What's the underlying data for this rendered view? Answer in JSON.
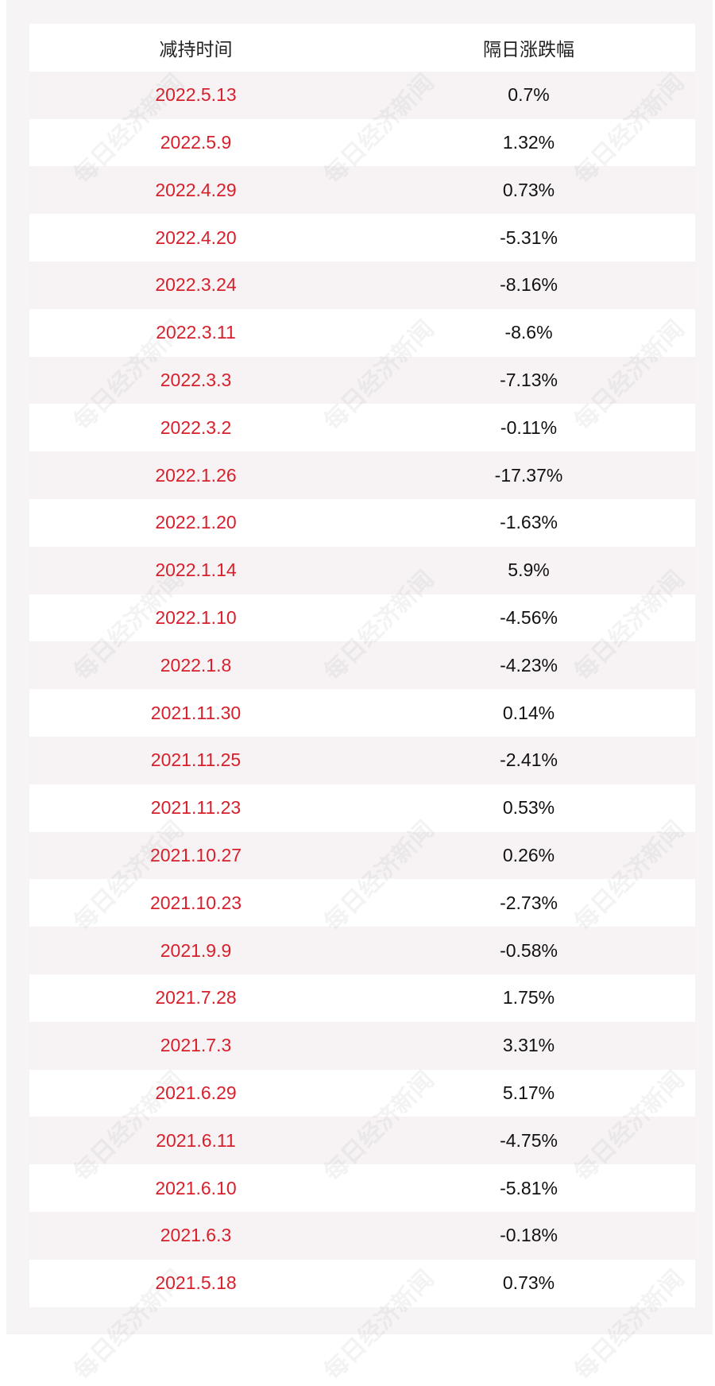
{
  "table": {
    "columns": [
      "减持时间",
      "隔日涨跌幅"
    ],
    "rows": [
      [
        "2022.5.13",
        "0.7%"
      ],
      [
        "2022.5.9",
        "1.32%"
      ],
      [
        "2022.4.29",
        "0.73%"
      ],
      [
        "2022.4.20",
        "-5.31%"
      ],
      [
        "2022.3.24",
        "-8.16%"
      ],
      [
        "2022.3.11",
        "-8.6%"
      ],
      [
        "2022.3.3",
        "-7.13%"
      ],
      [
        "2022.3.2",
        "-0.11%"
      ],
      [
        "2022.1.26",
        "-17.37%"
      ],
      [
        "2022.1.20",
        "-1.63%"
      ],
      [
        "2022.1.14",
        "5.9%"
      ],
      [
        "2022.1.10",
        "-4.56%"
      ],
      [
        "2022.1.8",
        "-4.23%"
      ],
      [
        "2021.11.30",
        "0.14%"
      ],
      [
        "2021.11.25",
        "-2.41%"
      ],
      [
        "2021.11.23",
        "0.53%"
      ],
      [
        "2021.10.27",
        "0.26%"
      ],
      [
        "2021.10.23",
        "-2.73%"
      ],
      [
        "2021.9.9",
        "-0.58%"
      ],
      [
        "2021.7.28",
        "1.75%"
      ],
      [
        "2021.7.3",
        "3.31%"
      ],
      [
        "2021.6.29",
        "5.17%"
      ],
      [
        "2021.6.11",
        "-4.75%"
      ],
      [
        "2021.6.10",
        "-5.81%"
      ],
      [
        "2021.6.3",
        "-0.18%"
      ],
      [
        "2021.5.18",
        "0.73%"
      ]
    ]
  },
  "watermark": "每日经济新闻"
}
